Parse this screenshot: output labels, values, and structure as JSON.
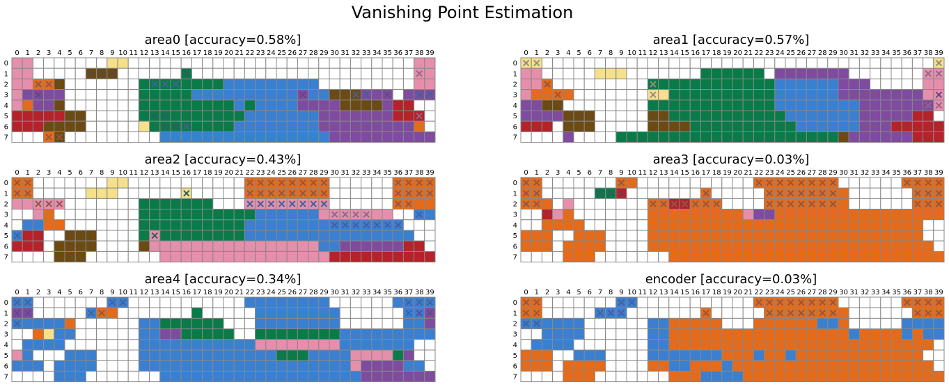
{
  "chart_data": {
    "type": "heatmap",
    "title": "Vanishing Point Estimation",
    "grid": true,
    "x_ticks": [
      "0",
      "1",
      "2",
      "3",
      "4",
      "5",
      "6",
      "7",
      "8",
      "9",
      "10",
      "11",
      "12",
      "13",
      "14",
      "15",
      "16",
      "17",
      "18",
      "19",
      "20",
      "21",
      "22",
      "23",
      "24",
      "25",
      "26",
      "27",
      "28",
      "29",
      "30",
      "31",
      "32",
      "33",
      "34",
      "35",
      "36",
      "37",
      "38",
      "39"
    ],
    "y_ticks": [
      "0",
      "1",
      "2",
      "3",
      "4",
      "5",
      "6",
      "7"
    ],
    "palette": {
      "A": "#e58fac",
      "B": "#f5e08c",
      "C": "#e36b1b",
      "D": "#6b4a14",
      "E": "#0a7a49",
      "F": "#3b7fd0",
      "G": "#7e4b9e",
      "H": "#b5222a",
      "I": "#d96a1e",
      "J": "#ffffff"
    },
    "mark_colors": {
      "x": "#8a94c9"
    },
    "panels": [
      {
        "title": "area0 [accuracy=0.58%]",
        "cells": [
          "AA.......BB...........................AA",
          "AA.....DDD......E.....................AA",
          "AACCD.......EEEEEEEEFFFFFFFFF.........AA",
          "AGGGG.......EEEEEFFFFFFFFFFGFFDDDGGG.GGG",
          "ACGGD.......EEEEEEEEEFEFFFFGGGGDDDDGHH..",
          "HHHHHDD.....EEEEEEEEEEFFFFFFFGGGGGGGHHH.",
          "HHHDDDD.....BEEEEEEEEFFFFFFFFGGGGGGGGGC.",
          "...CD.........FFFFFFFFFFFFFFFFGGGGGGGGGG"
        ],
        "marks": [
          "........................................",
          ".......DDD......E.....................A.",
          "..CC.D.......FFF.....................A..",
          "..G...D....................G....FF.G..FF",
          "...........E..........................A.",
          ".............EE.......................A.",
          "..............EEF.........................",
          "...CC....................................."
        ]
      },
      {
        "title": "area1 [accuracy=0.57%]",
        "cells": [
          "BB.....................................B",
          "AA.....BBB.......EEEEEE.GGGGGGG.......AA",
          "AAC.........EEEEEEEEEEEEFFFFFFGGG.....AA",
          "ACCCC.......BBEEEEEEEEEEFFFFFFGGGGGGGGAA",
          "GGDD........EEEEEEEEEEEEFFFFFFFFGGGGGGGA",
          "GGGGDDD.....DDEEEEEEEEEEEFFFFFFFGGGGGHH.",
          "HHH.DDD.....DDDDEEEEEEEEEEFFFFFFGGGHHHHH",
          "....G....EEEEEEEEEEEEEEEEEEEEEDGGGGGGHHH"
        ],
        "marks": [
          "BB...................................BBB",
          "................E.....................AA",
          "..C.........B......................F....",
          "...C........B..........................G",
          "......................................AA",
          "........................................",
          "..........................................",
          "..........................................."
        ]
      },
      {
        "title": "area2 [accuracy=0.43%]",
        "cells": [
          "CC.......BB...........CCCCCCCC......CCCC",
          "CC.....BBB......B.....CCCCCCCC......CCCC",
          "AAAAA.......EEEEEEE...AAAAAAAA......CCCC",
          "..AC........EEEEEEEEEEEFFFFFFAAAAAAA..FF",
          ".FFCC.......EEEEEEEEEEFFFFFFFFFFFFFFF...",
          "FHH..DDD....EAEEEEEEEEFFFFFFFFFFFFFFFF..",
          "HHH.DDDD....DAAAAAAAAAAAAAAAAFFGGGGGGHH.",
          "....DDD.......AAAAAAAAAAAAAAAAHHHHHHHHHH"
        ],
        "marks": [
          "CC....................CCCCCCCC......CCCC",
          "CC..............E.....CCCCCCCC......CCCC",
          "..CCC.................FFFFFFFF......CC..",
          "..............................AAAA....F.",
          "..............................FFFFFFFF..",
          "F............E..........................",
          "..........................................",
          "........................................."
        ]
      },
      {
        "title": "area3 [accuracy=0.03%]",
        "cells": [
          "CC.......CC...........CCCCCCCC......CCCC",
          "CC.....EEH.......C.....CCCCCCCC......CCCC",
          "CCC.A.......CCHHCCC....CCCCCCCC......CCCC",
          "..HAC.......CCCCCCCCCAGGCCCCCCCCCCCCCCCC",
          "..CCCC......CCCCCCCCCCCCCCCCCCCCCCCCCC..",
          "CCC..CCC....CCCCCCCCCCCCCCCCCCCCCCCCCC..",
          "CCC.CCCC....CCCCCCCCCCCCCCCCCCCCCCCCCCC.",
          "....CCC.......CCCCCCCCCCCCCCCCCCCCCCCCCC"
        ],
        "marks": [
          "CC.......C............CCCCCCCC......CCCC",
          "CC.....EEH.......C....CCCCCCCC......CCCC",
          "CC..........CCCCCCC...CCCCCCCC......CCCC",
          "..........................................",
          "..........................................",
          "..........................................",
          "..........................................",
          "........................................"
        ]
      },
      {
        "title": "area4 [accuracy=0.34%]",
        "cells": [
          "FF.......FF...........FFFFFFFF......FFFF",
          "GG.....FCC.......E.....FFFFFFFF......FFGG",
          "FFFFFC......FFEEEEEE...FFFFFFFF......FFGG",
          "..CBFF......FFGGEEEEE..EEEEEEEEFFFFFFFFF",
          ".FFFF.......FFFFFFFFFFFAAAAAAAAFFFFFFF..",
          "AF...FFF....FFFFFFFFFFFFFEEEFFFFAAAAEG..",
          "FFF.FFFF....FFFFFFFFFFFFFFFFFFFFAGGGGFF.",
          "....FFF.......FFFFFFFFFFFFFFFFFFFGGGGGGG"
        ],
        "marks": [
          "FF.......FF..........................FFF",
          "GG.....FC............................FGG",
          "F.........................................",
          "........................................",
          "........................................",
          "..........................................",
          "..........................................",
          "........................................"
        ]
      },
      {
        "title": "encoder [accuracy=0.03%]",
        "cells": [
          "CC.......FF...........CCCCCCCC......CCCC",
          "CC.....FFF.......C.....CCCCCCCC......CCCC",
          "FFFFFF......FFCCCCC...CCCCCCFFC.....FFFF",
          "..FFFF......FFCCCCCCCCCCCCCCCCCFCCCCFCFF",
          ".FFFF.......FFCCCCCCCCCCCCCCCCCCCCCCCCC..",
          "CCC..FFF....FFFFFFFCCCFCCFCCCCCCCCCCCC..",
          "CCC.CCCC....CCFFCCCFCCCCCCCCCCCCCCCCCCC.",
          "....CCC.......CCCFFFFCCCCCCCCCCCCCCCCCCC"
        ],
        "marks": [
          "CC.......FF...........CCCCCCCC......CCCC",
          "CC.....FFF.......C....CCCCCCCC......CCCC",
          "FF..........................................",
          "..........................................",
          "..........................................",
          "..........................................",
          "..........................................",
          "........................................"
        ]
      }
    ]
  }
}
